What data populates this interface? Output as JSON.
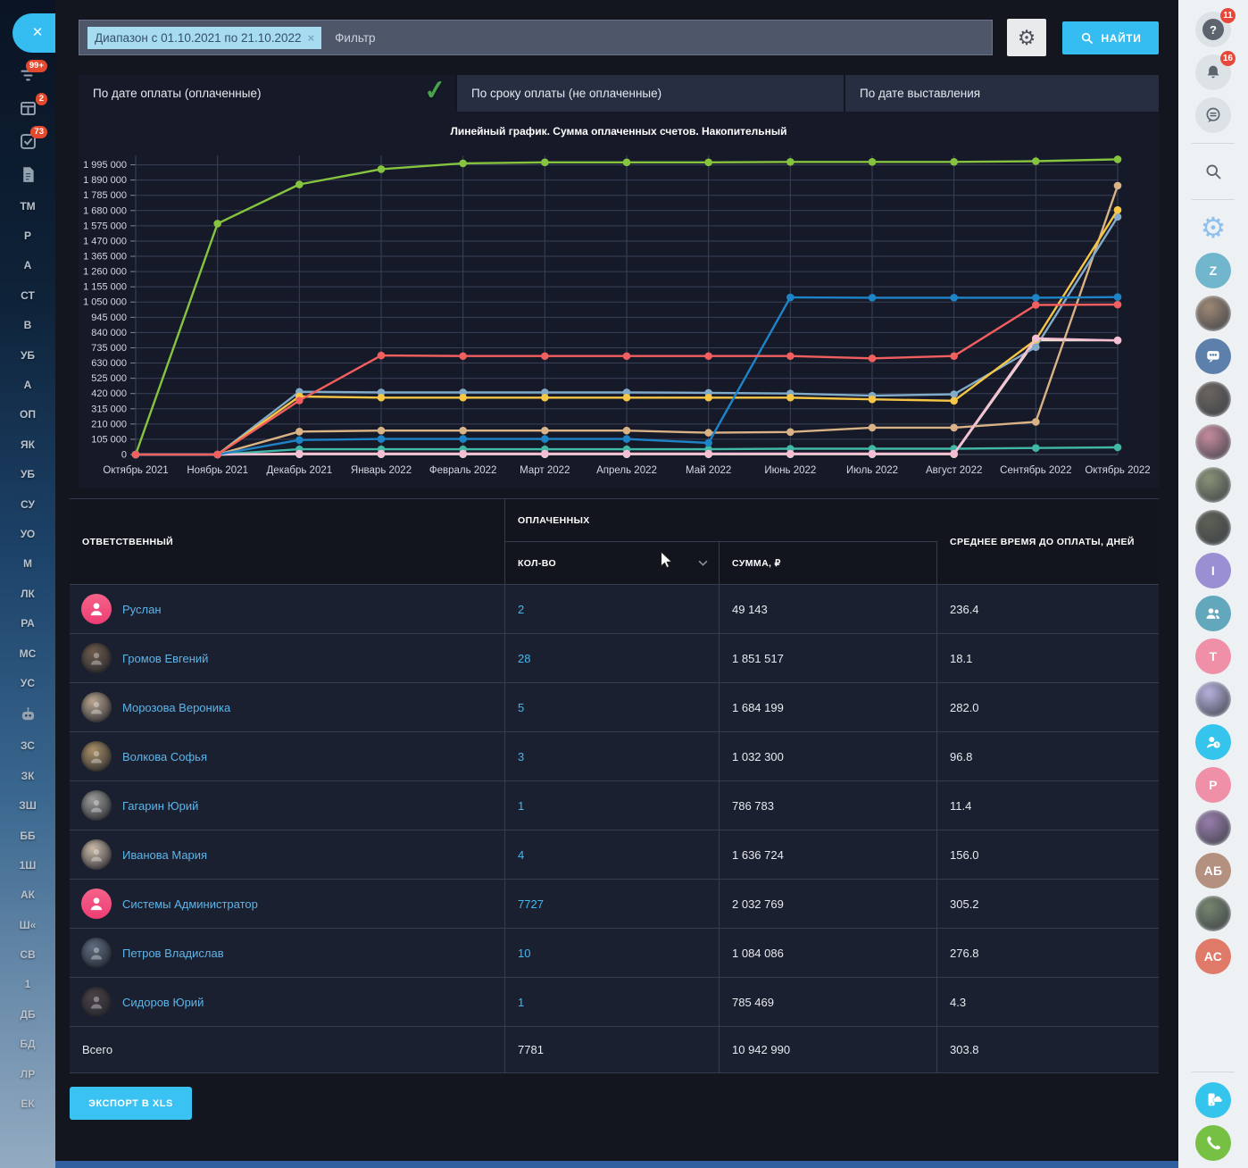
{
  "filter_bar": {
    "chip_text": "Диапазон с 01.10.2021 по 21.10.2022",
    "chip_remove": "×",
    "placeholder": "Фильтр",
    "search_button": "НАЙТИ"
  },
  "tabs": [
    {
      "label": "По дате оплаты (оплаченные)",
      "active": true
    },
    {
      "label": "По сроку оплаты (не оплаченные)",
      "active": false
    },
    {
      "label": "По дате выставления",
      "active": false
    }
  ],
  "chart_data": {
    "type": "line",
    "title": "Линейный график. Сумма оплаченных счетов. Накопительный",
    "x_labels": [
      "Октябрь 2021",
      "Ноябрь 2021",
      "Декабрь 2021",
      "Январь 2022",
      "Февраль 2022",
      "Март 2022",
      "Апрель 2022",
      "Май 2022",
      "Июнь 2022",
      "Июль 2022",
      "Август 2022",
      "Сентябрь 2022",
      "Октябрь 2022"
    ],
    "y_min": 0,
    "y_axis_max": 1995000,
    "y_step": 105000,
    "plot_max": 2060000,
    "grid": true,
    "legend": "none",
    "series": [
      {
        "name": "Системы Администратор",
        "color": "#86c440",
        "values": [
          0,
          1590000,
          1860000,
          1965000,
          2005000,
          2012000,
          2012000,
          2012000,
          2015000,
          2015000,
          2015000,
          2020000,
          2032769
        ]
      },
      {
        "name": "Гагарин Юрий",
        "color": "#ece4d6",
        "values": [
          0,
          0,
          2000,
          2000,
          2000,
          2000,
          2000,
          2000,
          2000,
          2000,
          2000,
          786783,
          786783
        ]
      },
      {
        "name": "Руслан",
        "color": "#41b8a6",
        "values": [
          0,
          0,
          36000,
          36000,
          36000,
          36000,
          36000,
          36000,
          40000,
          40000,
          40000,
          45000,
          49143
        ]
      },
      {
        "name": "Громов Евгений",
        "color": "#d9b285",
        "values": [
          0,
          0,
          158000,
          165000,
          165000,
          165000,
          165000,
          150000,
          155000,
          185000,
          185000,
          225000,
          1851517
        ]
      },
      {
        "name": "Иванова Мария",
        "color": "#82abc9",
        "values": [
          0,
          0,
          432000,
          428000,
          428000,
          428000,
          428000,
          425000,
          420000,
          405000,
          415000,
          740000,
          1636724
        ]
      },
      {
        "name": "Морозова Вероника",
        "color": "#f6c644",
        "values": [
          0,
          0,
          400000,
          392000,
          392000,
          392000,
          392000,
          392000,
          392000,
          380000,
          370000,
          790000,
          1684199
        ]
      },
      {
        "name": "Сидоров Юрий",
        "color": "#f6bed2",
        "values": [
          0,
          0,
          6000,
          6000,
          6000,
          6000,
          6000,
          6000,
          6000,
          6000,
          6000,
          800000,
          785469
        ]
      },
      {
        "name": "Петров Владислав",
        "color": "#1e84c8",
        "values": [
          0,
          0,
          100000,
          107000,
          107000,
          107000,
          107000,
          80000,
          1082000,
          1080000,
          1080000,
          1080000,
          1084086
        ]
      },
      {
        "name": "Волкова Софья",
        "color": "#f25f5f",
        "values": [
          0,
          0,
          372000,
          682000,
          678000,
          678000,
          678000,
          678000,
          678000,
          662000,
          678000,
          1030000,
          1032300
        ]
      }
    ]
  },
  "table": {
    "col_responsible": "ОТВЕТСТВЕННЫЙ",
    "col_paid": "ОПЛАЧЕННЫХ",
    "col_count": "КОЛ-ВО",
    "col_sum": "СУММА, ₽",
    "col_days": "СРЕДНЕЕ ВРЕМЯ ДО ОПЛАТЫ, ДНЕЙ",
    "rows": [
      {
        "name": "Руслан",
        "avatar": "person-icon",
        "tone": "",
        "count": "2",
        "sum": "49 143",
        "days": "236.4"
      },
      {
        "name": "Громов Евгений",
        "avatar": "photo",
        "tone": "#6d5b4b",
        "count": "28",
        "sum": "1 851 517",
        "days": "18.1"
      },
      {
        "name": "Морозова Вероника",
        "avatar": "photo",
        "tone": "#b7a48e",
        "count": "5",
        "sum": "1 684 199",
        "days": "282.0"
      },
      {
        "name": "Волкова Софья",
        "avatar": "photo",
        "tone": "#a98f66",
        "count": "3",
        "sum": "1 032 300",
        "days": "96.8"
      },
      {
        "name": "Гагарин Юрий",
        "avatar": "photo",
        "tone": "#9a9a98",
        "count": "1",
        "sum": "786 783",
        "days": "11.4"
      },
      {
        "name": "Иванова Мария",
        "avatar": "photo",
        "tone": "#cbb9a8",
        "count": "4",
        "sum": "1 636 724",
        "days": "156.0"
      },
      {
        "name": "Системы Администратор",
        "avatar": "person-icon",
        "tone": "",
        "count": "7727",
        "sum": "2 032 769",
        "days": "305.2"
      },
      {
        "name": "Петров Владислав",
        "avatar": "photo",
        "tone": "#5d6c80",
        "count": "10",
        "sum": "1 084 086",
        "days": "276.8"
      },
      {
        "name": "Сидоров Юрий",
        "avatar": "photo",
        "tone": "#4a4147",
        "count": "1",
        "sum": "785 469",
        "days": "4.3"
      }
    ],
    "total": {
      "label": "Всего",
      "count": "7781",
      "sum": "10 942 990",
      "days": "303.8"
    }
  },
  "export_button": "ЭКСПОРТ В XLS",
  "left_sidebar": {
    "items": [
      {
        "type": "icon",
        "icon": "filter-icon",
        "badge": "99+"
      },
      {
        "type": "icon",
        "icon": "board-icon",
        "badge": "2"
      },
      {
        "type": "icon",
        "icon": "tasks-icon",
        "badge": "73"
      },
      {
        "type": "icon",
        "icon": "document-icon",
        "badge": ""
      },
      {
        "type": "label",
        "text": "ТМ"
      },
      {
        "type": "label",
        "text": "Р"
      },
      {
        "type": "label",
        "text": "А"
      },
      {
        "type": "label",
        "text": "СТ"
      },
      {
        "type": "label",
        "text": "В"
      },
      {
        "type": "label",
        "text": "УБ"
      },
      {
        "type": "label",
        "text": "А"
      },
      {
        "type": "label",
        "text": "ОП"
      },
      {
        "type": "label",
        "text": "ЯК"
      },
      {
        "type": "label",
        "text": "УБ"
      },
      {
        "type": "label",
        "text": "СУ"
      },
      {
        "type": "label",
        "text": "УО"
      },
      {
        "type": "label",
        "text": "М"
      },
      {
        "type": "label",
        "text": "ЛК"
      },
      {
        "type": "label",
        "text": "РА"
      },
      {
        "type": "label",
        "text": "МС"
      },
      {
        "type": "label",
        "text": "УС"
      },
      {
        "type": "icon",
        "icon": "robot-icon",
        "badge": ""
      },
      {
        "type": "label",
        "text": "ЗС"
      },
      {
        "type": "label",
        "text": "ЗК"
      },
      {
        "type": "label",
        "text": "ЗШ"
      },
      {
        "type": "label",
        "text": "ББ"
      },
      {
        "type": "label",
        "text": "1Ш"
      },
      {
        "type": "label",
        "text": "АК"
      },
      {
        "type": "label",
        "text": "Ш«"
      },
      {
        "type": "label",
        "text": "СВ"
      },
      {
        "type": "label",
        "text": "1"
      },
      {
        "type": "label",
        "text": "ДБ"
      },
      {
        "type": "label",
        "text": "БД"
      },
      {
        "type": "label",
        "text": "ЛР"
      },
      {
        "type": "label",
        "text": "ЕК"
      }
    ],
    "close_label": "×"
  },
  "right_sidebar": {
    "items": [
      {
        "type": "icon-badge",
        "icon": "help-icon",
        "badge": "11"
      },
      {
        "type": "icon-badge",
        "icon": "bell-icon",
        "badge": "16"
      },
      {
        "type": "icon-circle",
        "icon": "chat-lines-icon"
      },
      {
        "type": "divider"
      },
      {
        "type": "icon-plain",
        "icon": "search-icon"
      },
      {
        "type": "divider"
      },
      {
        "type": "glyph",
        "icon": "integration-gear-icon",
        "color": "#8fc1ee"
      },
      {
        "type": "avatar-text",
        "text": "Z",
        "color": "#72b6cd"
      },
      {
        "type": "avatar-photo",
        "color": "#a08a76"
      },
      {
        "type": "avatar-icon",
        "icon": "group-chat-icon",
        "color": "#5c80ab"
      },
      {
        "type": "avatar-photo",
        "color": "#6b6560"
      },
      {
        "type": "avatar-photo",
        "color": "#c98ea0"
      },
      {
        "type": "avatar-photo",
        "color": "#8a9478"
      },
      {
        "type": "avatar-photo",
        "color": "#5d6155"
      },
      {
        "type": "avatar-text",
        "text": "I",
        "color": "#9a8fd2"
      },
      {
        "type": "avatar-icon",
        "icon": "two-people-icon",
        "color": "#63a7bc"
      },
      {
        "type": "avatar-text",
        "text": "T",
        "color": "#ef8fa8"
      },
      {
        "type": "avatar-photo",
        "color": "#b8b4e0"
      },
      {
        "type": "avatar-icon",
        "icon": "person-clock-icon",
        "color": "#35c4ec"
      },
      {
        "type": "avatar-text",
        "text": "P",
        "color": "#ef8fa8"
      },
      {
        "type": "avatar-photo",
        "color": "#9a7fae"
      },
      {
        "type": "avatar-text",
        "text": "АБ",
        "color": "#b3907f"
      },
      {
        "type": "avatar-photo",
        "color": "#77876f"
      },
      {
        "type": "avatar-text",
        "text": "АС",
        "color": "#e07a68"
      },
      {
        "type": "spacer"
      },
      {
        "type": "divider"
      },
      {
        "type": "avatar-icon",
        "icon": "phone-cloud-icon",
        "color": "#35c4ec"
      },
      {
        "type": "avatar-icon",
        "icon": "phone-icon",
        "color": "#76c143"
      }
    ]
  }
}
